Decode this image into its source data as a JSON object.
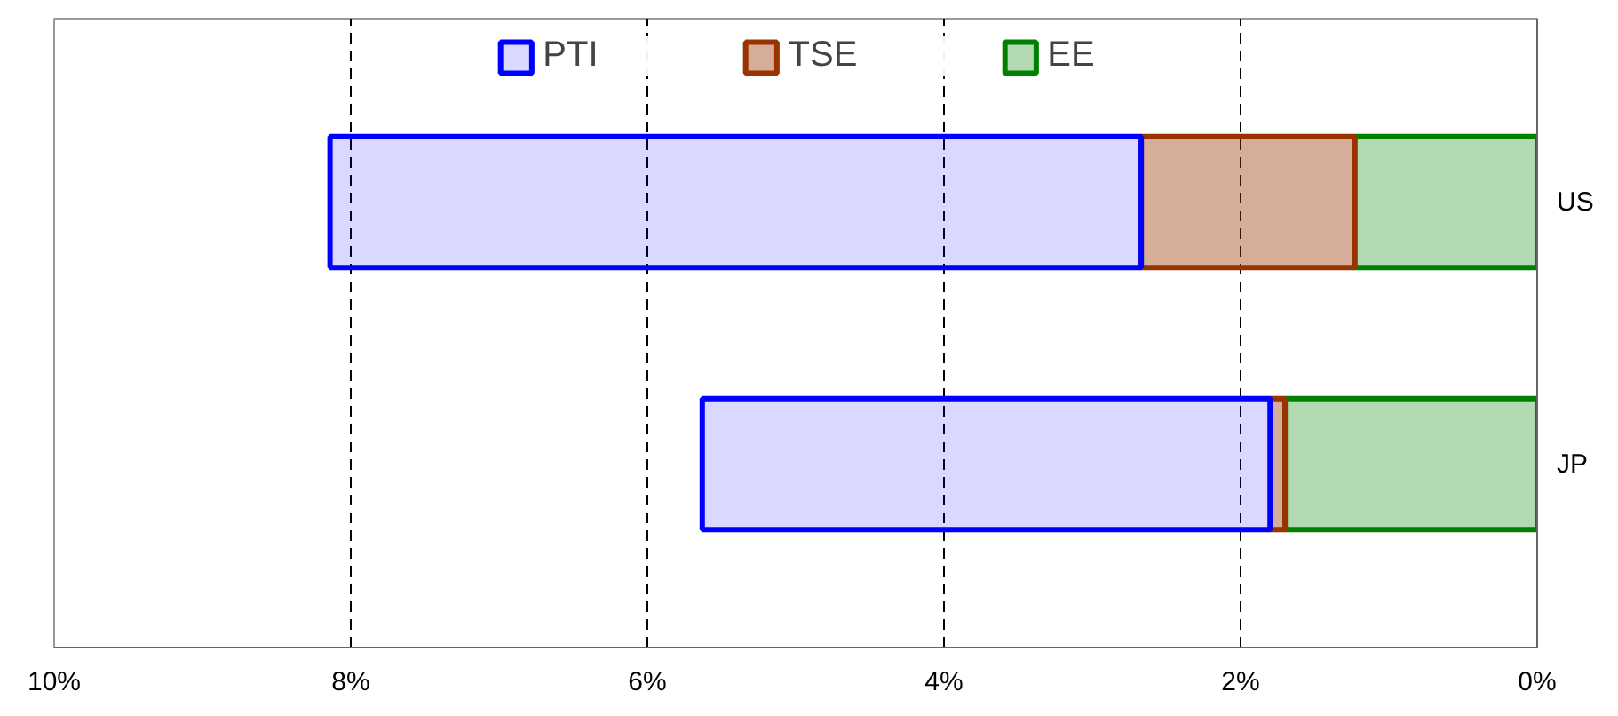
{
  "chart_data": {
    "type": "bar",
    "orientation": "horizontal",
    "stacked": true,
    "categories": [
      "US",
      "JP"
    ],
    "series": [
      {
        "name": "EE",
        "color": "#008000",
        "values": [
          1.23,
          1.7
        ]
      },
      {
        "name": "TSE",
        "color": "#993300",
        "values": [
          1.44,
          0.1
        ]
      },
      {
        "name": "PTI",
        "color": "#0000ff",
        "values": [
          5.47,
          3.83
        ]
      }
    ],
    "xlim": [
      10,
      0
    ],
    "xticks": [
      {
        "value": 10,
        "label": "10%"
      },
      {
        "value": 8,
        "label": "8%"
      },
      {
        "value": 6,
        "label": "6%"
      },
      {
        "value": 4,
        "label": "4%"
      },
      {
        "value": 2,
        "label": "2%"
      },
      {
        "value": 0,
        "label": "0%"
      }
    ],
    "grid": "x",
    "legend": "top"
  }
}
